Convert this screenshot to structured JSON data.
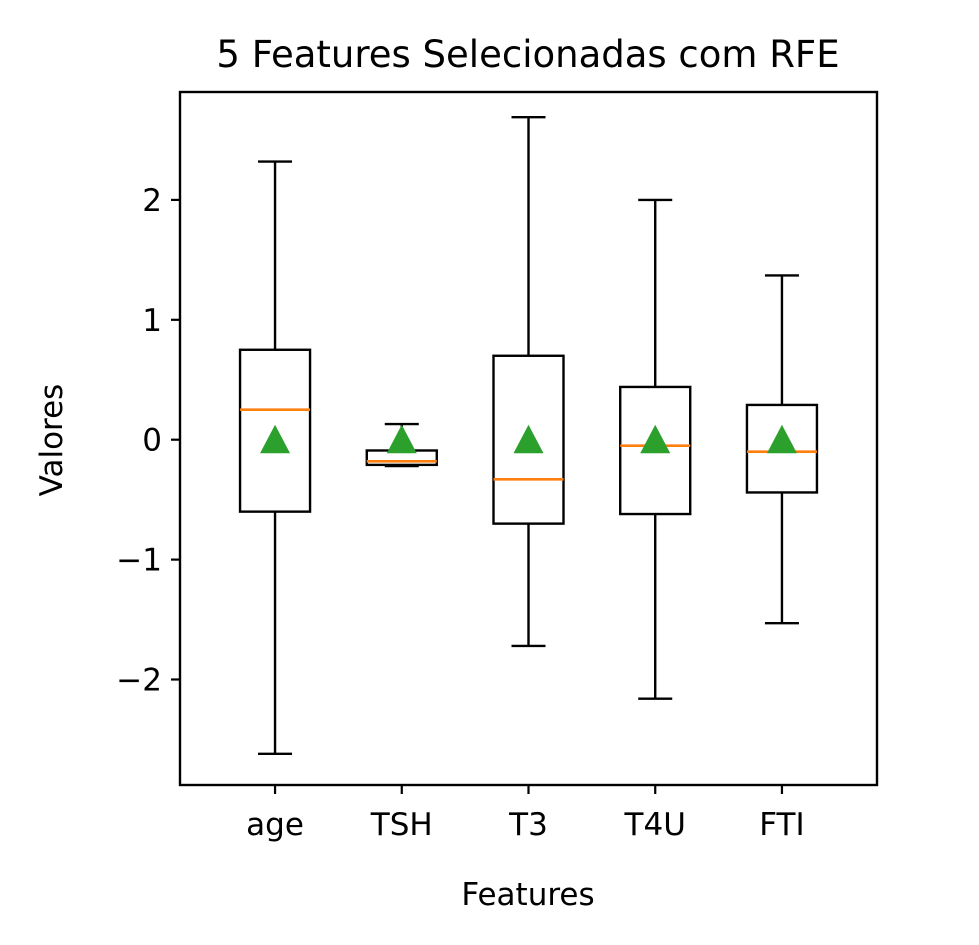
{
  "chart_data": {
    "type": "box",
    "title": "5 Features Selecionadas com RFE",
    "xlabel": "Features",
    "ylabel": "Valores",
    "ylim": [
      -2.88,
      2.9
    ],
    "yticks": [
      -2,
      -1,
      0,
      1,
      2
    ],
    "ytick_labels": [
      "−2",
      "−1",
      "0",
      "1",
      "2"
    ],
    "grid": false,
    "legend": "none",
    "categories": [
      "age",
      "TSH",
      "T3",
      "T4U",
      "FTI"
    ],
    "series": [
      {
        "whisker_low": -2.62,
        "q1": -0.6,
        "median": 0.25,
        "q3": 0.75,
        "whisker_high": 2.32,
        "mean": 0.0
      },
      {
        "whisker_low": -0.22,
        "q1": -0.21,
        "median": -0.18,
        "q3": -0.09,
        "whisker_high": 0.13,
        "mean": 0.0
      },
      {
        "whisker_low": -1.72,
        "q1": -0.7,
        "median": -0.33,
        "q3": 0.7,
        "whisker_high": 2.69,
        "mean": 0.0
      },
      {
        "whisker_low": -2.16,
        "q1": -0.62,
        "median": -0.05,
        "q3": 0.44,
        "whisker_high": 2.0,
        "mean": 0.0
      },
      {
        "whisker_low": -1.53,
        "q1": -0.44,
        "median": -0.1,
        "q3": 0.29,
        "whisker_high": 1.37,
        "mean": 0.0
      }
    ],
    "colors": {
      "box": "#000000",
      "median": "#ff7f0e",
      "mean_marker": "#2ca02c"
    }
  }
}
